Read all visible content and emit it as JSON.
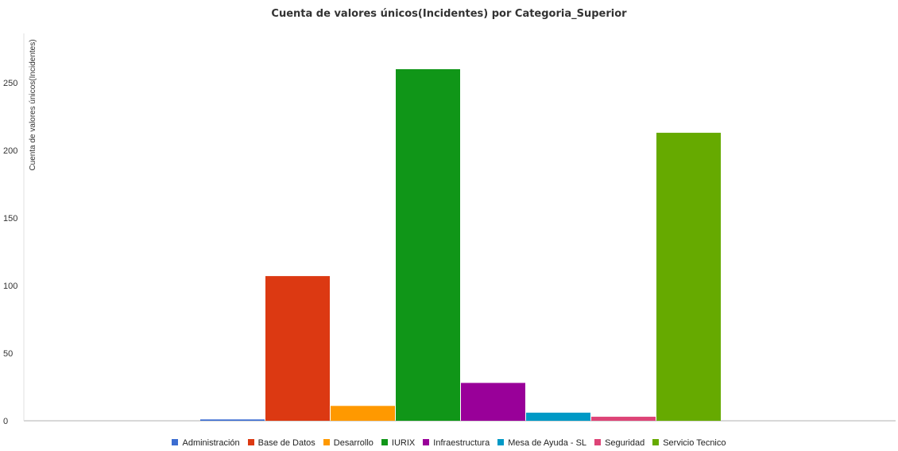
{
  "chart_data": {
    "type": "bar",
    "title": "Cuenta de valores únicos(Incidentes) por Categoria_Superior",
    "ylabel": "Cuenta de valores únicos(Incidentes)",
    "xlabel": "",
    "ylim": [
      0,
      300
    ],
    "yticks": [
      "0",
      "50",
      "100",
      "150",
      "200",
      "250"
    ],
    "legend_position": "bottom",
    "grid": false,
    "series": [
      {
        "name": "Administración",
        "value": 1,
        "color": "#3c6dd1"
      },
      {
        "name": "Base de Datos",
        "value": 107,
        "color": "#dc3912"
      },
      {
        "name": "Desarrollo",
        "value": 11,
        "color": "#ff9900"
      },
      {
        "name": "IURIX",
        "value": 260,
        "color": "#109618"
      },
      {
        "name": "Infraestructura",
        "value": 28,
        "color": "#990099"
      },
      {
        "name": "Mesa de Ayuda - SL",
        "value": 6,
        "color": "#0099c6"
      },
      {
        "name": "Seguridad",
        "value": 3,
        "color": "#dd4477"
      },
      {
        "name": "Servicio Tecnico",
        "value": 213,
        "color": "#66aa00"
      }
    ]
  }
}
